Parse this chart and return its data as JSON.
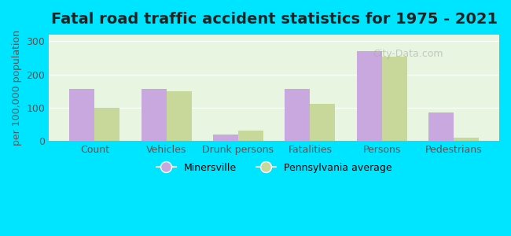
{
  "title": "Fatal road traffic accident statistics for 1975 - 2021",
  "categories": [
    "Count",
    "Vehicles",
    "Drunk persons",
    "Fatalities",
    "Persons",
    "Pedestrians"
  ],
  "minersville": [
    157,
    158,
    20,
    157,
    270,
    85
  ],
  "pa_average": [
    101,
    150,
    32,
    113,
    253,
    10
  ],
  "minersville_color": "#c9a8e0",
  "pa_average_color": "#c8d89a",
  "ylabel": "per 100,000 population",
  "ylim": [
    0,
    320
  ],
  "yticks": [
    0,
    100,
    200,
    300
  ],
  "background_color": "#e8f5e0",
  "outer_background": "#00e5ff",
  "bar_width": 0.35,
  "title_fontsize": 14,
  "axis_fontsize": 9,
  "legend_label_1": "Minersville",
  "legend_label_2": "Pennsylvania average",
  "watermark": "City-Data.com"
}
